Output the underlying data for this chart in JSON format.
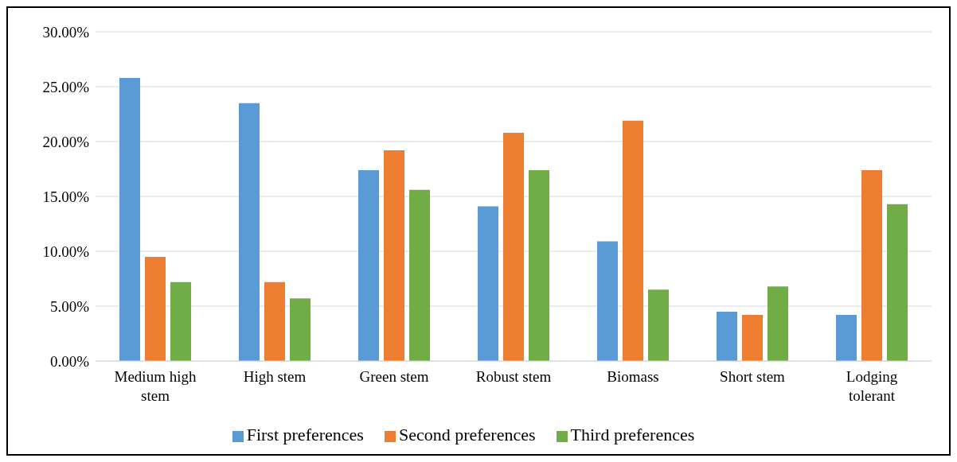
{
  "chart_data": {
    "type": "bar",
    "categories": [
      "Medium high stem",
      "High stem",
      "Green stem",
      "Robust stem",
      "Biomass",
      "Short stem",
      "Lodging tolerant"
    ],
    "series": [
      {
        "name": "First preferences",
        "color": "#5b9bd5",
        "values": [
          25.8,
          23.5,
          17.4,
          14.1,
          10.9,
          4.5,
          4.2
        ]
      },
      {
        "name": "Second preferences",
        "color": "#ed7d31",
        "values": [
          9.5,
          7.2,
          19.2,
          20.8,
          21.9,
          4.2,
          17.4
        ]
      },
      {
        "name": "Third preferences",
        "color": "#70ad47",
        "values": [
          7.2,
          5.7,
          15.6,
          17.4,
          6.5,
          6.8,
          14.3
        ]
      }
    ],
    "ylim": [
      0,
      30
    ],
    "yticks": [
      {
        "value": 0,
        "label": "0.00%"
      },
      {
        "value": 5,
        "label": "5.00%"
      },
      {
        "value": 10,
        "label": "10.00%"
      },
      {
        "value": 15,
        "label": "15.00%"
      },
      {
        "value": 20,
        "label": "20.00%"
      },
      {
        "value": 25,
        "label": "25.00%"
      },
      {
        "value": 30,
        "label": "30.00%"
      }
    ],
    "grid": "y",
    "legend": "bottom"
  }
}
